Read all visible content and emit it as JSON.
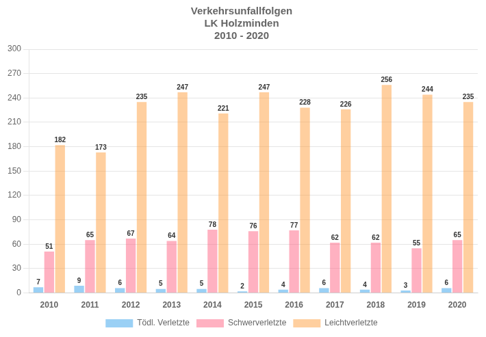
{
  "chart_data": {
    "type": "bar",
    "title": [
      "Verkehrsunfallfolgen",
      "LK Holzminden",
      "2010 - 2020"
    ],
    "categories": [
      "2010",
      "2011",
      "2012",
      "2013",
      "2014",
      "2015",
      "2016",
      "2017",
      "2018",
      "2019",
      "2020"
    ],
    "series": [
      {
        "name": "Tödl. Verletzte",
        "values": [
          7,
          9,
          6,
          5,
          5,
          2,
          4,
          6,
          4,
          3,
          6
        ]
      },
      {
        "name": "Schwerverletzte",
        "values": [
          51,
          65,
          67,
          64,
          78,
          76,
          77,
          62,
          62,
          55,
          65
        ]
      },
      {
        "name": "Leichtverletzte",
        "values": [
          182,
          173,
          235,
          247,
          221,
          247,
          228,
          226,
          256,
          244,
          235
        ]
      }
    ],
    "ylim": [
      0,
      300
    ],
    "yticks": [
      0,
      30,
      60,
      90,
      120,
      150,
      180,
      210,
      240,
      270,
      300
    ],
    "grid": true,
    "legend": "bottom",
    "data_labels": true
  }
}
